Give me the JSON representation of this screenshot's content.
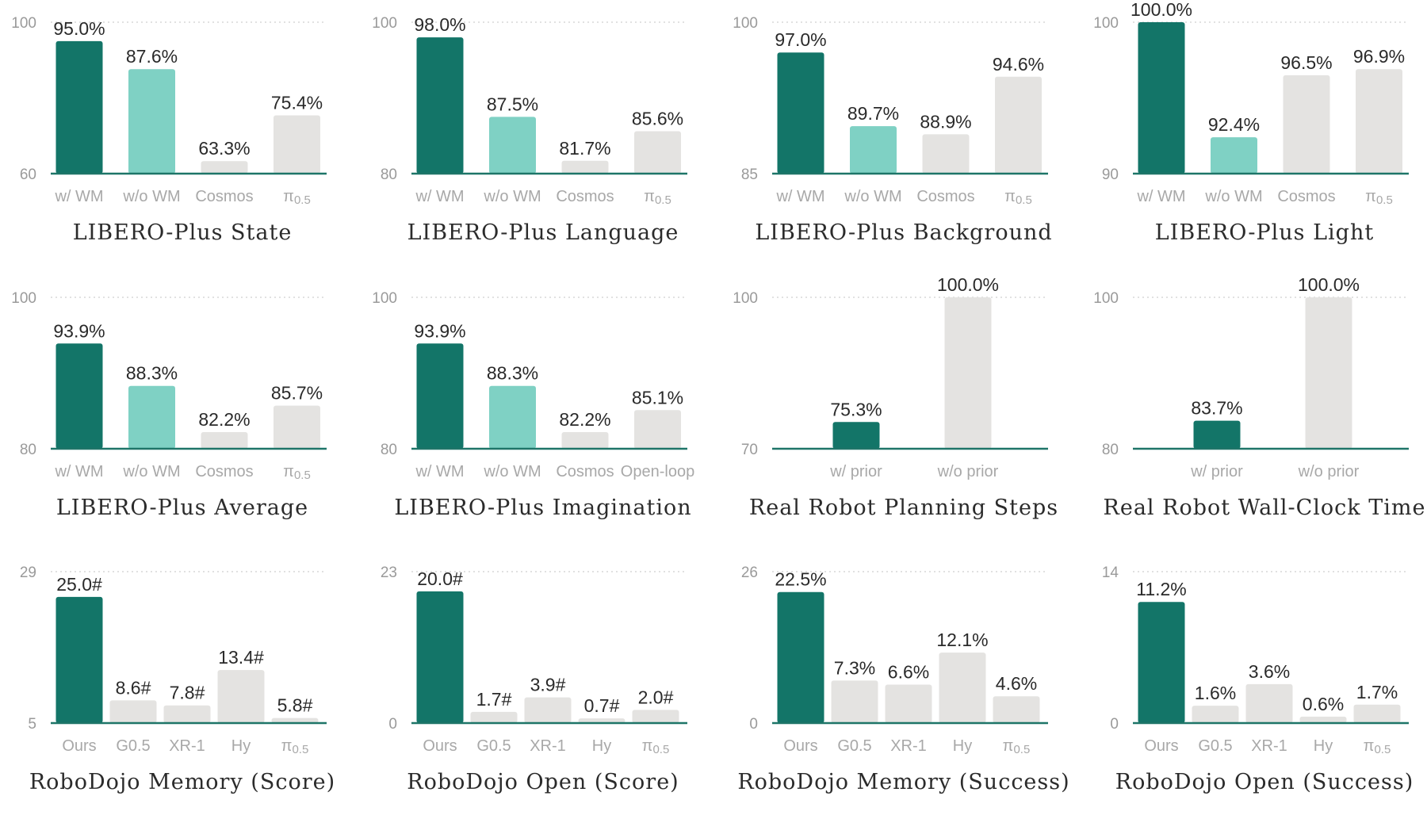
{
  "colors": {
    "ours": "#137568",
    "ablation": "#7fd1c4",
    "baseline": "#e4e3e1",
    "axis": "#1e7568"
  },
  "chart_data": [
    {
      "type": "bar",
      "title": "LIBERO-Plus State",
      "categories": [
        "w/ WM",
        "w/o WM",
        "Cosmos",
        "π0.5"
      ],
      "values": [
        95.0,
        87.6,
        63.3,
        75.4
      ],
      "value_labels": [
        "95.0%",
        "87.6%",
        "63.3%",
        "75.4%"
      ],
      "ylim": [
        60,
        100
      ],
      "yticks": [
        "60",
        "100"
      ],
      "bar_colors": [
        "ours",
        "ablation",
        "baseline",
        "baseline"
      ],
      "grid": "dotted top line",
      "xlabel": "",
      "ylabel": ""
    },
    {
      "type": "bar",
      "title": "LIBERO-Plus Language",
      "categories": [
        "w/ WM",
        "w/o WM",
        "Cosmos",
        "π0.5"
      ],
      "values": [
        98.0,
        87.5,
        81.7,
        85.6
      ],
      "value_labels": [
        "98.0%",
        "87.5%",
        "81.7%",
        "85.6%"
      ],
      "ylim": [
        80,
        100
      ],
      "yticks": [
        "80",
        "100"
      ],
      "bar_colors": [
        "ours",
        "ablation",
        "baseline",
        "baseline"
      ],
      "grid": "dotted top line",
      "xlabel": "",
      "ylabel": ""
    },
    {
      "type": "bar",
      "title": "LIBERO-Plus Background",
      "categories": [
        "w/ WM",
        "w/o WM",
        "Cosmos",
        "π0.5"
      ],
      "values": [
        97.0,
        89.7,
        88.9,
        94.6
      ],
      "value_labels": [
        "97.0%",
        "89.7%",
        "88.9%",
        "94.6%"
      ],
      "ylim": [
        85,
        100
      ],
      "yticks": [
        "85",
        "100"
      ],
      "bar_colors": [
        "ours",
        "ablation",
        "baseline",
        "baseline"
      ],
      "grid": "dotted top line",
      "xlabel": "",
      "ylabel": ""
    },
    {
      "type": "bar",
      "title": "LIBERO-Plus Light",
      "categories": [
        "w/ WM",
        "w/o WM",
        "Cosmos",
        "π0.5"
      ],
      "values": [
        100.0,
        92.4,
        96.5,
        96.9
      ],
      "value_labels": [
        "100.0%",
        "92.4%",
        "96.5%",
        "96.9%"
      ],
      "ylim": [
        90,
        100
      ],
      "yticks": [
        "90",
        "100"
      ],
      "bar_colors": [
        "ours",
        "ablation",
        "baseline",
        "baseline"
      ],
      "grid": "dotted top line",
      "xlabel": "",
      "ylabel": ""
    },
    {
      "type": "bar",
      "title": "LIBERO-Plus Average",
      "categories": [
        "w/ WM",
        "w/o WM",
        "Cosmos",
        "π0.5"
      ],
      "values": [
        93.9,
        88.3,
        82.2,
        85.7
      ],
      "value_labels": [
        "93.9%",
        "88.3%",
        "82.2%",
        "85.7%"
      ],
      "ylim": [
        80,
        100
      ],
      "yticks": [
        "80",
        "100"
      ],
      "bar_colors": [
        "ours",
        "ablation",
        "baseline",
        "baseline"
      ],
      "grid": "dotted top line",
      "xlabel": "",
      "ylabel": ""
    },
    {
      "type": "bar",
      "title": "LIBERO-Plus Imagination",
      "categories": [
        "w/ WM",
        "w/o WM",
        "Cosmos",
        "Open-loop"
      ],
      "values": [
        93.9,
        88.3,
        82.2,
        85.1
      ],
      "value_labels": [
        "93.9%",
        "88.3%",
        "82.2%",
        "85.1%"
      ],
      "ylim": [
        80,
        100
      ],
      "yticks": [
        "80",
        "100"
      ],
      "bar_colors": [
        "ours",
        "ablation",
        "baseline",
        "baseline"
      ],
      "grid": "dotted top line",
      "xlabel": "",
      "ylabel": ""
    },
    {
      "type": "bar",
      "title": "Real Robot Planning Steps",
      "categories": [
        "w/ prior",
        "w/o prior"
      ],
      "values": [
        75.3,
        100.0
      ],
      "value_labels": [
        "75.3%",
        "100.0%"
      ],
      "ylim": [
        70,
        100
      ],
      "yticks": [
        "70",
        "100"
      ],
      "bar_colors": [
        "ours",
        "baseline"
      ],
      "grid": "dotted top line",
      "xlabel": "",
      "ylabel": ""
    },
    {
      "type": "bar",
      "title": "Real Robot Wall-Clock Time",
      "categories": [
        "w/ prior",
        "w/o prior"
      ],
      "values": [
        83.7,
        100.0
      ],
      "value_labels": [
        "83.7%",
        "100.0%"
      ],
      "ylim": [
        80,
        100
      ],
      "yticks": [
        "80",
        "100"
      ],
      "bar_colors": [
        "ours",
        "baseline"
      ],
      "grid": "dotted top line",
      "xlabel": "",
      "ylabel": ""
    },
    {
      "type": "bar",
      "title": "RoboDojo Memory (Score)",
      "categories": [
        "Ours",
        "G0.5",
        "XR-1",
        "Hy",
        "π0.5"
      ],
      "values": [
        25.0,
        8.6,
        7.8,
        13.4,
        5.8
      ],
      "value_labels": [
        "25.0#",
        "8.6#",
        "7.8#",
        "13.4#",
        "5.8#"
      ],
      "ylim": [
        5,
        29
      ],
      "yticks": [
        "5",
        "29"
      ],
      "bar_colors": [
        "ours",
        "baseline",
        "baseline",
        "baseline",
        "baseline"
      ],
      "grid": "dotted top line",
      "xlabel": "",
      "ylabel": ""
    },
    {
      "type": "bar",
      "title": "RoboDojo Open (Score)",
      "categories": [
        "Ours",
        "G0.5",
        "XR-1",
        "Hy",
        "π0.5"
      ],
      "values": [
        20.0,
        1.7,
        3.9,
        0.7,
        2.0
      ],
      "value_labels": [
        "20.0#",
        "1.7#",
        "3.9#",
        "0.7#",
        "2.0#"
      ],
      "ylim": [
        0,
        23
      ],
      "yticks": [
        "0",
        "23"
      ],
      "bar_colors": [
        "ours",
        "baseline",
        "baseline",
        "baseline",
        "baseline"
      ],
      "grid": "dotted top line",
      "xlabel": "",
      "ylabel": ""
    },
    {
      "type": "bar",
      "title": "RoboDojo Memory (Success)",
      "categories": [
        "Ours",
        "G0.5",
        "XR-1",
        "Hy",
        "π0.5"
      ],
      "values": [
        22.5,
        7.3,
        6.6,
        12.1,
        4.6
      ],
      "value_labels": [
        "22.5%",
        "7.3%",
        "6.6%",
        "12.1%",
        "4.6%"
      ],
      "ylim": [
        0,
        26
      ],
      "yticks": [
        "0",
        "26"
      ],
      "bar_colors": [
        "ours",
        "baseline",
        "baseline",
        "baseline",
        "baseline"
      ],
      "grid": "dotted top line",
      "xlabel": "",
      "ylabel": ""
    },
    {
      "type": "bar",
      "title": "RoboDojo Open (Success)",
      "categories": [
        "Ours",
        "G0.5",
        "XR-1",
        "Hy",
        "π0.5"
      ],
      "values": [
        11.2,
        1.6,
        3.6,
        0.6,
        1.7
      ],
      "value_labels": [
        "11.2%",
        "1.6%",
        "3.6%",
        "0.6%",
        "1.7%"
      ],
      "ylim": [
        0,
        14
      ],
      "yticks": [
        "0",
        "14"
      ],
      "bar_colors": [
        "ours",
        "baseline",
        "baseline",
        "baseline",
        "baseline"
      ],
      "grid": "dotted top line",
      "xlabel": "",
      "ylabel": ""
    }
  ]
}
